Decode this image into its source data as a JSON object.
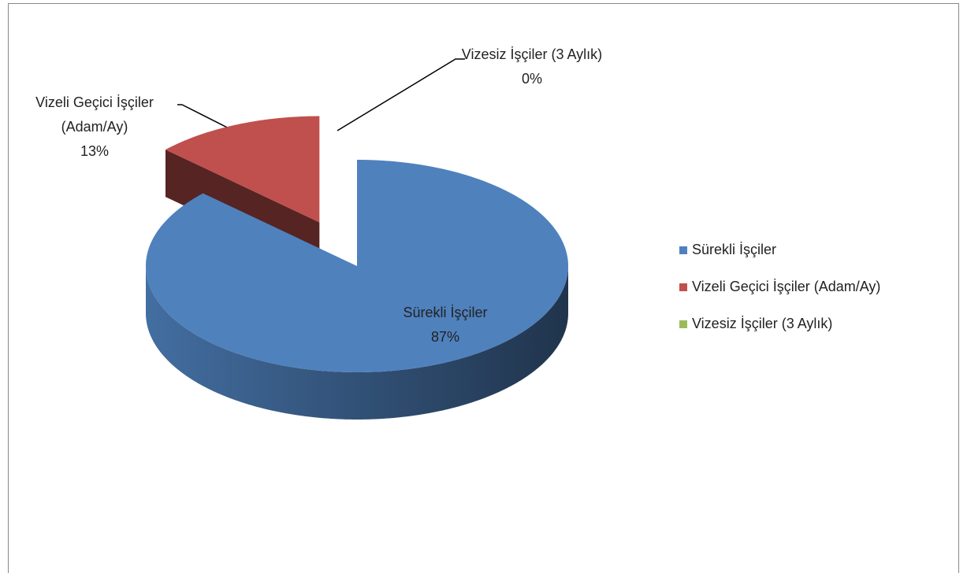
{
  "chart_data": {
    "type": "pie",
    "categories": [
      "Sürekli İşçiler",
      "Vizeli Geçici İşçiler (Adam/Ay)",
      "Vizesiz İşçiler (3 Aylık)"
    ],
    "values": [
      87,
      13,
      0
    ],
    "value_labels": [
      "87%",
      "13%",
      "0%"
    ],
    "colors": [
      "#4f81bd",
      "#c0504d",
      "#9bbb59"
    ],
    "legend": "right"
  }
}
